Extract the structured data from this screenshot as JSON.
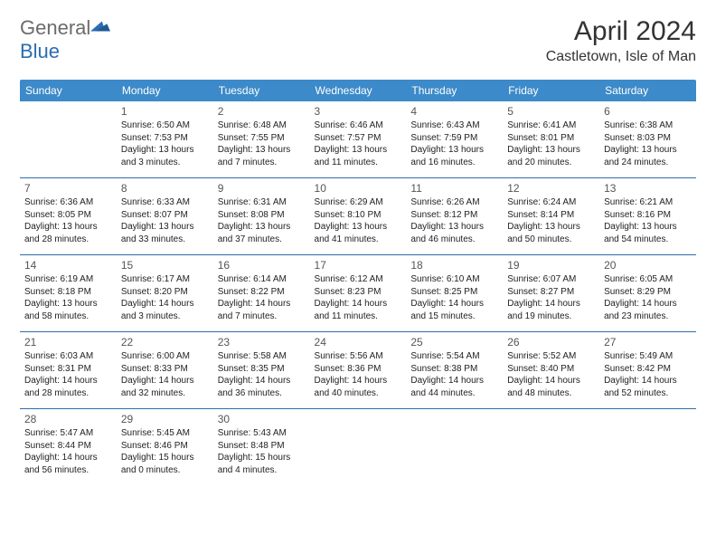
{
  "logo": {
    "name": "General",
    "suffix": "Blue"
  },
  "title": {
    "month": "April 2024",
    "location": "Castletown, Isle of Man"
  },
  "colors": {
    "header_bg": "#3c8ac9",
    "header_text": "#ffffff",
    "row_border": "#2f6ea8",
    "logo_gray": "#6b6b6b",
    "logo_blue": "#2a6db2",
    "text": "#222222",
    "daynum": "#555555",
    "background": "#ffffff"
  },
  "typography": {
    "month_fontsize": 30,
    "location_fontsize": 16,
    "header_fontsize": 12,
    "cell_fontsize": 10,
    "daynum_fontsize": 12
  },
  "weekdays": [
    "Sunday",
    "Monday",
    "Tuesday",
    "Wednesday",
    "Thursday",
    "Friday",
    "Saturday"
  ],
  "weeks": [
    [
      {
        "day": "",
        "sunrise": "",
        "sunset": "",
        "daylight1": "",
        "daylight2": ""
      },
      {
        "day": "1",
        "sunrise": "Sunrise: 6:50 AM",
        "sunset": "Sunset: 7:53 PM",
        "daylight1": "Daylight: 13 hours",
        "daylight2": "and 3 minutes."
      },
      {
        "day": "2",
        "sunrise": "Sunrise: 6:48 AM",
        "sunset": "Sunset: 7:55 PM",
        "daylight1": "Daylight: 13 hours",
        "daylight2": "and 7 minutes."
      },
      {
        "day": "3",
        "sunrise": "Sunrise: 6:46 AM",
        "sunset": "Sunset: 7:57 PM",
        "daylight1": "Daylight: 13 hours",
        "daylight2": "and 11 minutes."
      },
      {
        "day": "4",
        "sunrise": "Sunrise: 6:43 AM",
        "sunset": "Sunset: 7:59 PM",
        "daylight1": "Daylight: 13 hours",
        "daylight2": "and 16 minutes."
      },
      {
        "day": "5",
        "sunrise": "Sunrise: 6:41 AM",
        "sunset": "Sunset: 8:01 PM",
        "daylight1": "Daylight: 13 hours",
        "daylight2": "and 20 minutes."
      },
      {
        "day": "6",
        "sunrise": "Sunrise: 6:38 AM",
        "sunset": "Sunset: 8:03 PM",
        "daylight1": "Daylight: 13 hours",
        "daylight2": "and 24 minutes."
      }
    ],
    [
      {
        "day": "7",
        "sunrise": "Sunrise: 6:36 AM",
        "sunset": "Sunset: 8:05 PM",
        "daylight1": "Daylight: 13 hours",
        "daylight2": "and 28 minutes."
      },
      {
        "day": "8",
        "sunrise": "Sunrise: 6:33 AM",
        "sunset": "Sunset: 8:07 PM",
        "daylight1": "Daylight: 13 hours",
        "daylight2": "and 33 minutes."
      },
      {
        "day": "9",
        "sunrise": "Sunrise: 6:31 AM",
        "sunset": "Sunset: 8:08 PM",
        "daylight1": "Daylight: 13 hours",
        "daylight2": "and 37 minutes."
      },
      {
        "day": "10",
        "sunrise": "Sunrise: 6:29 AM",
        "sunset": "Sunset: 8:10 PM",
        "daylight1": "Daylight: 13 hours",
        "daylight2": "and 41 minutes."
      },
      {
        "day": "11",
        "sunrise": "Sunrise: 6:26 AM",
        "sunset": "Sunset: 8:12 PM",
        "daylight1": "Daylight: 13 hours",
        "daylight2": "and 46 minutes."
      },
      {
        "day": "12",
        "sunrise": "Sunrise: 6:24 AM",
        "sunset": "Sunset: 8:14 PM",
        "daylight1": "Daylight: 13 hours",
        "daylight2": "and 50 minutes."
      },
      {
        "day": "13",
        "sunrise": "Sunrise: 6:21 AM",
        "sunset": "Sunset: 8:16 PM",
        "daylight1": "Daylight: 13 hours",
        "daylight2": "and 54 minutes."
      }
    ],
    [
      {
        "day": "14",
        "sunrise": "Sunrise: 6:19 AM",
        "sunset": "Sunset: 8:18 PM",
        "daylight1": "Daylight: 13 hours",
        "daylight2": "and 58 minutes."
      },
      {
        "day": "15",
        "sunrise": "Sunrise: 6:17 AM",
        "sunset": "Sunset: 8:20 PM",
        "daylight1": "Daylight: 14 hours",
        "daylight2": "and 3 minutes."
      },
      {
        "day": "16",
        "sunrise": "Sunrise: 6:14 AM",
        "sunset": "Sunset: 8:22 PM",
        "daylight1": "Daylight: 14 hours",
        "daylight2": "and 7 minutes."
      },
      {
        "day": "17",
        "sunrise": "Sunrise: 6:12 AM",
        "sunset": "Sunset: 8:23 PM",
        "daylight1": "Daylight: 14 hours",
        "daylight2": "and 11 minutes."
      },
      {
        "day": "18",
        "sunrise": "Sunrise: 6:10 AM",
        "sunset": "Sunset: 8:25 PM",
        "daylight1": "Daylight: 14 hours",
        "daylight2": "and 15 minutes."
      },
      {
        "day": "19",
        "sunrise": "Sunrise: 6:07 AM",
        "sunset": "Sunset: 8:27 PM",
        "daylight1": "Daylight: 14 hours",
        "daylight2": "and 19 minutes."
      },
      {
        "day": "20",
        "sunrise": "Sunrise: 6:05 AM",
        "sunset": "Sunset: 8:29 PM",
        "daylight1": "Daylight: 14 hours",
        "daylight2": "and 23 minutes."
      }
    ],
    [
      {
        "day": "21",
        "sunrise": "Sunrise: 6:03 AM",
        "sunset": "Sunset: 8:31 PM",
        "daylight1": "Daylight: 14 hours",
        "daylight2": "and 28 minutes."
      },
      {
        "day": "22",
        "sunrise": "Sunrise: 6:00 AM",
        "sunset": "Sunset: 8:33 PM",
        "daylight1": "Daylight: 14 hours",
        "daylight2": "and 32 minutes."
      },
      {
        "day": "23",
        "sunrise": "Sunrise: 5:58 AM",
        "sunset": "Sunset: 8:35 PM",
        "daylight1": "Daylight: 14 hours",
        "daylight2": "and 36 minutes."
      },
      {
        "day": "24",
        "sunrise": "Sunrise: 5:56 AM",
        "sunset": "Sunset: 8:36 PM",
        "daylight1": "Daylight: 14 hours",
        "daylight2": "and 40 minutes."
      },
      {
        "day": "25",
        "sunrise": "Sunrise: 5:54 AM",
        "sunset": "Sunset: 8:38 PM",
        "daylight1": "Daylight: 14 hours",
        "daylight2": "and 44 minutes."
      },
      {
        "day": "26",
        "sunrise": "Sunrise: 5:52 AM",
        "sunset": "Sunset: 8:40 PM",
        "daylight1": "Daylight: 14 hours",
        "daylight2": "and 48 minutes."
      },
      {
        "day": "27",
        "sunrise": "Sunrise: 5:49 AM",
        "sunset": "Sunset: 8:42 PM",
        "daylight1": "Daylight: 14 hours",
        "daylight2": "and 52 minutes."
      }
    ],
    [
      {
        "day": "28",
        "sunrise": "Sunrise: 5:47 AM",
        "sunset": "Sunset: 8:44 PM",
        "daylight1": "Daylight: 14 hours",
        "daylight2": "and 56 minutes."
      },
      {
        "day": "29",
        "sunrise": "Sunrise: 5:45 AM",
        "sunset": "Sunset: 8:46 PM",
        "daylight1": "Daylight: 15 hours",
        "daylight2": "and 0 minutes."
      },
      {
        "day": "30",
        "sunrise": "Sunrise: 5:43 AM",
        "sunset": "Sunset: 8:48 PM",
        "daylight1": "Daylight: 15 hours",
        "daylight2": "and 4 minutes."
      },
      {
        "day": "",
        "sunrise": "",
        "sunset": "",
        "daylight1": "",
        "daylight2": ""
      },
      {
        "day": "",
        "sunrise": "",
        "sunset": "",
        "daylight1": "",
        "daylight2": ""
      },
      {
        "day": "",
        "sunrise": "",
        "sunset": "",
        "daylight1": "",
        "daylight2": ""
      },
      {
        "day": "",
        "sunrise": "",
        "sunset": "",
        "daylight1": "",
        "daylight2": ""
      }
    ]
  ]
}
